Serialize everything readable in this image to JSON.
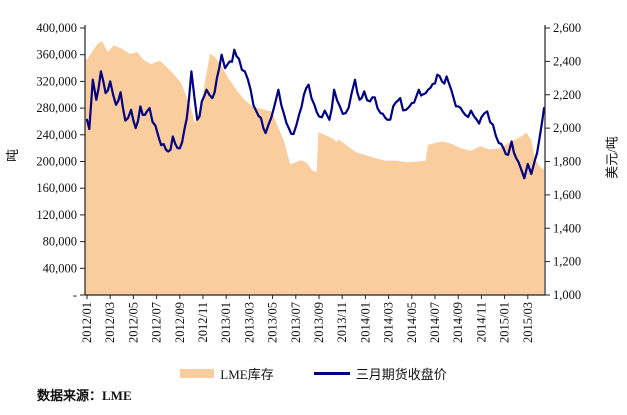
{
  "figure": {
    "footer_source": "数据来源：LME"
  },
  "chart_data": {
    "type": "combo",
    "title": "",
    "legend_position": "bottom",
    "grid": false,
    "x_axis": {
      "note": "series point x = months since 2012/01 (0 = 2012/01), read off category axis",
      "tick_labels": [
        "2012/01",
        "2012/03",
        "2012/05",
        "2012/07",
        "2012/09",
        "2012/11",
        "2013/01",
        "2013/03",
        "2013/05",
        "2013/07",
        "2013/09",
        "2013/11",
        "2014/01",
        "2014/03",
        "2014/05",
        "2014/07",
        "2014/09",
        "2014/11",
        "2015/01",
        "2015/03"
      ]
    },
    "left_axis": {
      "unit_label": "吨",
      "min": 0,
      "max": 400000,
      "step": 40000,
      "tick_labels": [
        "400,000",
        "360,000",
        "320,000",
        "280,000",
        "240,000",
        "200,000",
        "160,000",
        "120,000",
        "80,000",
        "40,000",
        "-"
      ]
    },
    "right_axis": {
      "unit_label": "美元/吨",
      "min": 1000,
      "max": 2600,
      "step": 200,
      "tick_labels": [
        "2,600",
        "2,400",
        "2,200",
        "2,000",
        "1,800",
        "1,600",
        "1,400",
        "1,200",
        "1,000"
      ]
    },
    "series": [
      {
        "name": "LME库存",
        "type": "area",
        "axis": "left",
        "color": "#facd9e",
        "points": [
          [
            0,
            353000
          ],
          [
            0.4,
            363000
          ],
          [
            0.9,
            376000
          ],
          [
            1.3,
            380000
          ],
          [
            1.8,
            364000
          ],
          [
            2.3,
            374000
          ],
          [
            3,
            369000
          ],
          [
            3.7,
            361000
          ],
          [
            4.3,
            364000
          ],
          [
            4.9,
            352000
          ],
          [
            5.5,
            346000
          ],
          [
            6.3,
            351000
          ],
          [
            7.2,
            336000
          ],
          [
            8.1,
            318000
          ],
          [
            8.9,
            284000
          ],
          [
            9.3,
            258000
          ],
          [
            9.7,
            273000
          ],
          [
            10.2,
            322000
          ],
          [
            10.6,
            362000
          ],
          [
            11.1,
            355000
          ],
          [
            11.6,
            343000
          ],
          [
            12.1,
            327000
          ],
          [
            12.9,
            307000
          ],
          [
            13.6,
            292000
          ],
          [
            14.3,
            282000
          ],
          [
            15.2,
            278000
          ],
          [
            15.9,
            275000
          ],
          [
            16.4,
            255000
          ],
          [
            17,
            230000
          ],
          [
            17.5,
            196000
          ],
          [
            18,
            199000
          ],
          [
            18.4,
            202000
          ],
          [
            18.9,
            199000
          ],
          [
            19.4,
            187000
          ],
          [
            19.8,
            184000
          ],
          [
            19.95,
            244000
          ],
          [
            20.6,
            239000
          ],
          [
            21.2,
            234000
          ],
          [
            21.5,
            229000
          ],
          [
            21.7,
            233000
          ],
          [
            22.4,
            224000
          ],
          [
            23.2,
            214000
          ],
          [
            24.1,
            209000
          ],
          [
            24.9,
            205000
          ],
          [
            25.8,
            201000
          ],
          [
            26.7,
            201000
          ],
          [
            27.6,
            199000
          ],
          [
            28.5,
            200000
          ],
          [
            29.2,
            201000
          ],
          [
            29.4,
            225000
          ],
          [
            30.1,
            228000
          ],
          [
            30.7,
            230000
          ],
          [
            31.5,
            226000
          ],
          [
            32.2,
            220000
          ],
          [
            33.1,
            216000
          ],
          [
            33.9,
            223000
          ],
          [
            34.7,
            218000
          ],
          [
            35.6,
            220000
          ],
          [
            36.4,
            228000
          ],
          [
            37.2,
            235000
          ],
          [
            37.9,
            243000
          ],
          [
            38.3,
            232000
          ],
          [
            38.6,
            205000
          ],
          [
            39,
            193000
          ],
          [
            39.4,
            188000
          ]
        ]
      },
      {
        "name": "三月期货收盘价",
        "type": "line",
        "axis": "right",
        "color": "#000080",
        "points": [
          [
            0,
            2050
          ],
          [
            0.2,
            1995
          ],
          [
            0.5,
            2290
          ],
          [
            0.8,
            2170
          ],
          [
            1.2,
            2340
          ],
          [
            1.6,
            2210
          ],
          [
            2,
            2280
          ],
          [
            2.5,
            2140
          ],
          [
            2.9,
            2215
          ],
          [
            3.3,
            2045
          ],
          [
            3.8,
            2110
          ],
          [
            4.2,
            2000
          ],
          [
            4.6,
            2130
          ],
          [
            5,
            2080
          ],
          [
            5.4,
            2120
          ],
          [
            5.9,
            2015
          ],
          [
            6.2,
            1940
          ],
          [
            6.6,
            1905
          ],
          [
            7,
            1860
          ],
          [
            7.4,
            1950
          ],
          [
            7.8,
            1880
          ],
          [
            8.2,
            1915
          ],
          [
            8.6,
            2060
          ],
          [
            9,
            2340
          ],
          [
            9.5,
            2050
          ],
          [
            9.9,
            2160
          ],
          [
            10.3,
            2230
          ],
          [
            10.8,
            2180
          ],
          [
            11.2,
            2300
          ],
          [
            11.6,
            2440
          ],
          [
            11.9,
            2360
          ],
          [
            12.3,
            2400
          ],
          [
            12.7,
            2470
          ],
          [
            13.1,
            2415
          ],
          [
            13.6,
            2340
          ],
          [
            14.1,
            2230
          ],
          [
            14.6,
            2100
          ],
          [
            15,
            2060
          ],
          [
            15.4,
            1970
          ],
          [
            15.9,
            2065
          ],
          [
            16.5,
            2230
          ],
          [
            17,
            2080
          ],
          [
            17.4,
            2000
          ],
          [
            17.8,
            1965
          ],
          [
            18.3,
            2085
          ],
          [
            18.7,
            2200
          ],
          [
            19.1,
            2260
          ],
          [
            19.6,
            2140
          ],
          [
            20,
            2070
          ],
          [
            20.5,
            2105
          ],
          [
            20.9,
            2050
          ],
          [
            21.3,
            2230
          ],
          [
            21.8,
            2130
          ],
          [
            22.3,
            2090
          ],
          [
            22.8,
            2205
          ],
          [
            23.1,
            2290
          ],
          [
            23.5,
            2170
          ],
          [
            23.9,
            2220
          ],
          [
            24.4,
            2160
          ],
          [
            24.8,
            2185
          ],
          [
            25.3,
            2090
          ],
          [
            25.9,
            2050
          ],
          [
            26.4,
            2130
          ],
          [
            27,
            2180
          ],
          [
            27.5,
            2110
          ],
          [
            28,
            2150
          ],
          [
            28.6,
            2230
          ],
          [
            29.2,
            2210
          ],
          [
            29.8,
            2265
          ],
          [
            30.2,
            2320
          ],
          [
            30.6,
            2280
          ],
          [
            31,
            2310
          ],
          [
            31.6,
            2180
          ],
          [
            32,
            2130
          ],
          [
            32.6,
            2080
          ],
          [
            33.1,
            2105
          ],
          [
            33.6,
            2050
          ],
          [
            34,
            2065
          ],
          [
            34.5,
            2100
          ],
          [
            35,
            2020
          ],
          [
            35.5,
            1910
          ],
          [
            35.9,
            1880
          ],
          [
            36.3,
            1840
          ],
          [
            36.6,
            1920
          ],
          [
            37,
            1820
          ],
          [
            37.4,
            1760
          ],
          [
            37.7,
            1700
          ],
          [
            38,
            1785
          ],
          [
            38.3,
            1725
          ],
          [
            38.6,
            1805
          ],
          [
            39,
            1935
          ],
          [
            39.25,
            2045
          ],
          [
            39.4,
            2120
          ]
        ]
      }
    ]
  }
}
